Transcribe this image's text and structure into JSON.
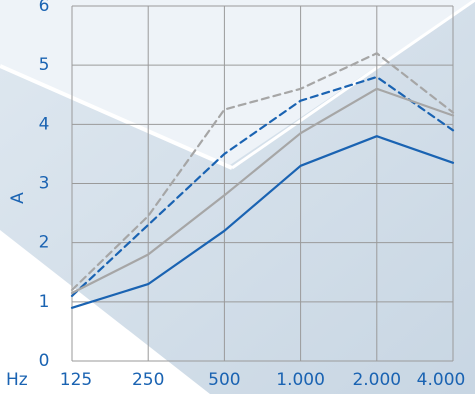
{
  "chart_data": {
    "type": "line",
    "ylabel": "A",
    "xunit": "Hz",
    "categories": [
      "125",
      "250",
      "500",
      "1.000",
      "2.000",
      "4.000"
    ],
    "ylim": [
      0,
      6
    ],
    "yticks": [
      "0",
      "1",
      "2",
      "3",
      "4",
      "5",
      "6"
    ],
    "grid": true,
    "legend": "none",
    "series": [
      {
        "values": [
          0.9,
          1.3,
          2.2,
          3.3,
          3.8,
          3.35
        ],
        "color": "#1a63b2",
        "style": "solid"
      },
      {
        "values": [
          1.1,
          2.3,
          3.5,
          4.4,
          4.8,
          3.9
        ],
        "color": "#1a63b2",
        "style": "dashed"
      },
      {
        "values": [
          1.15,
          1.8,
          2.8,
          3.85,
          4.6,
          4.15
        ],
        "color": "#a6a6a6",
        "style": "solid"
      },
      {
        "values": [
          1.2,
          2.45,
          4.25,
          4.6,
          5.2,
          4.2
        ],
        "color": "#a6a6a6",
        "style": "dashed"
      }
    ]
  },
  "colors": {
    "grid": "#9a9a9a",
    "background_band": "#d5e0ea",
    "tick_text": "#1a63b2"
  }
}
